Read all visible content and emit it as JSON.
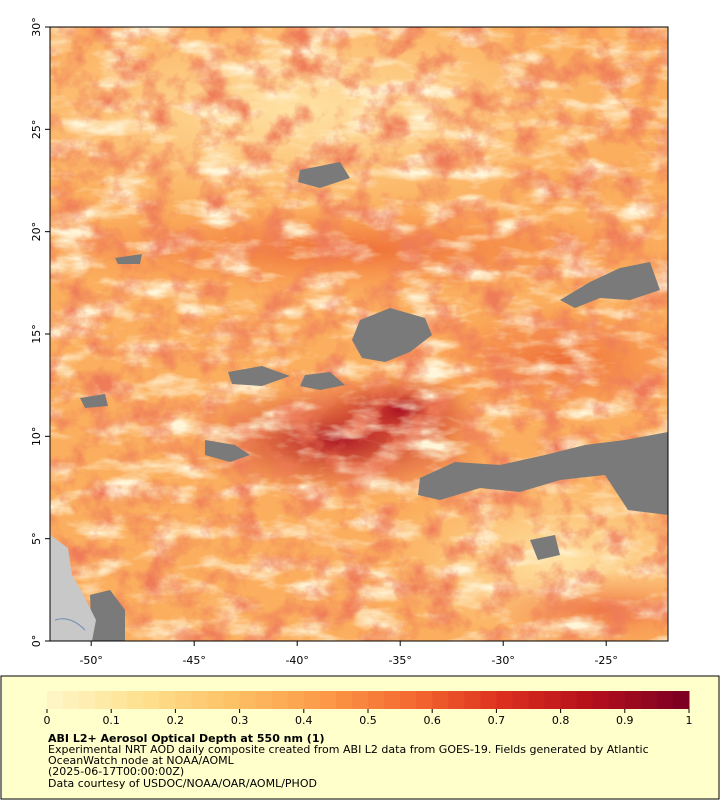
{
  "map": {
    "xlim": [
      -52,
      -22
    ],
    "ylim": [
      0,
      30
    ],
    "xticks": [
      {
        "value": -50,
        "label": "-50°"
      },
      {
        "value": -45,
        "label": "-45°"
      },
      {
        "value": -40,
        "label": "-40°"
      },
      {
        "value": -35,
        "label": "-35°"
      },
      {
        "value": -30,
        "label": "-30°"
      },
      {
        "value": -25,
        "label": "-25°"
      }
    ],
    "yticks": [
      {
        "value": 0,
        "label": "0°"
      },
      {
        "value": 5,
        "label": "5°"
      },
      {
        "value": 10,
        "label": "10°"
      },
      {
        "value": 15,
        "label": "15°"
      },
      {
        "value": 20,
        "label": "20°"
      },
      {
        "value": 25,
        "label": "25°"
      },
      {
        "value": 30,
        "label": "30°"
      }
    ]
  },
  "colorbar": {
    "lim": [
      0,
      1
    ],
    "ticks": [
      0,
      0.1,
      0.2,
      0.3,
      0.4,
      0.5,
      0.6,
      0.7,
      0.8,
      0.9,
      1
    ],
    "colors": [
      "#fff5c4",
      "#fee08e",
      "#fdc065",
      "#fc9a48",
      "#f46a30",
      "#dc2f1e",
      "#b4101c",
      "#7d0022"
    ]
  },
  "caption": {
    "title": "ABI L2+ Aerosol Optical Depth at 550 nm (1)",
    "lines": [
      "Experimental NRT AOD daily composite created from ABI L2 data from GOES-19. Fields generated by Atlantic",
      "OceanWatch node at NOAA/AOML",
      "(2025-06-17T00:00:00Z)",
      "Data courtesy of USDOC/NOAA/OAR/AOML/PHOD"
    ]
  }
}
